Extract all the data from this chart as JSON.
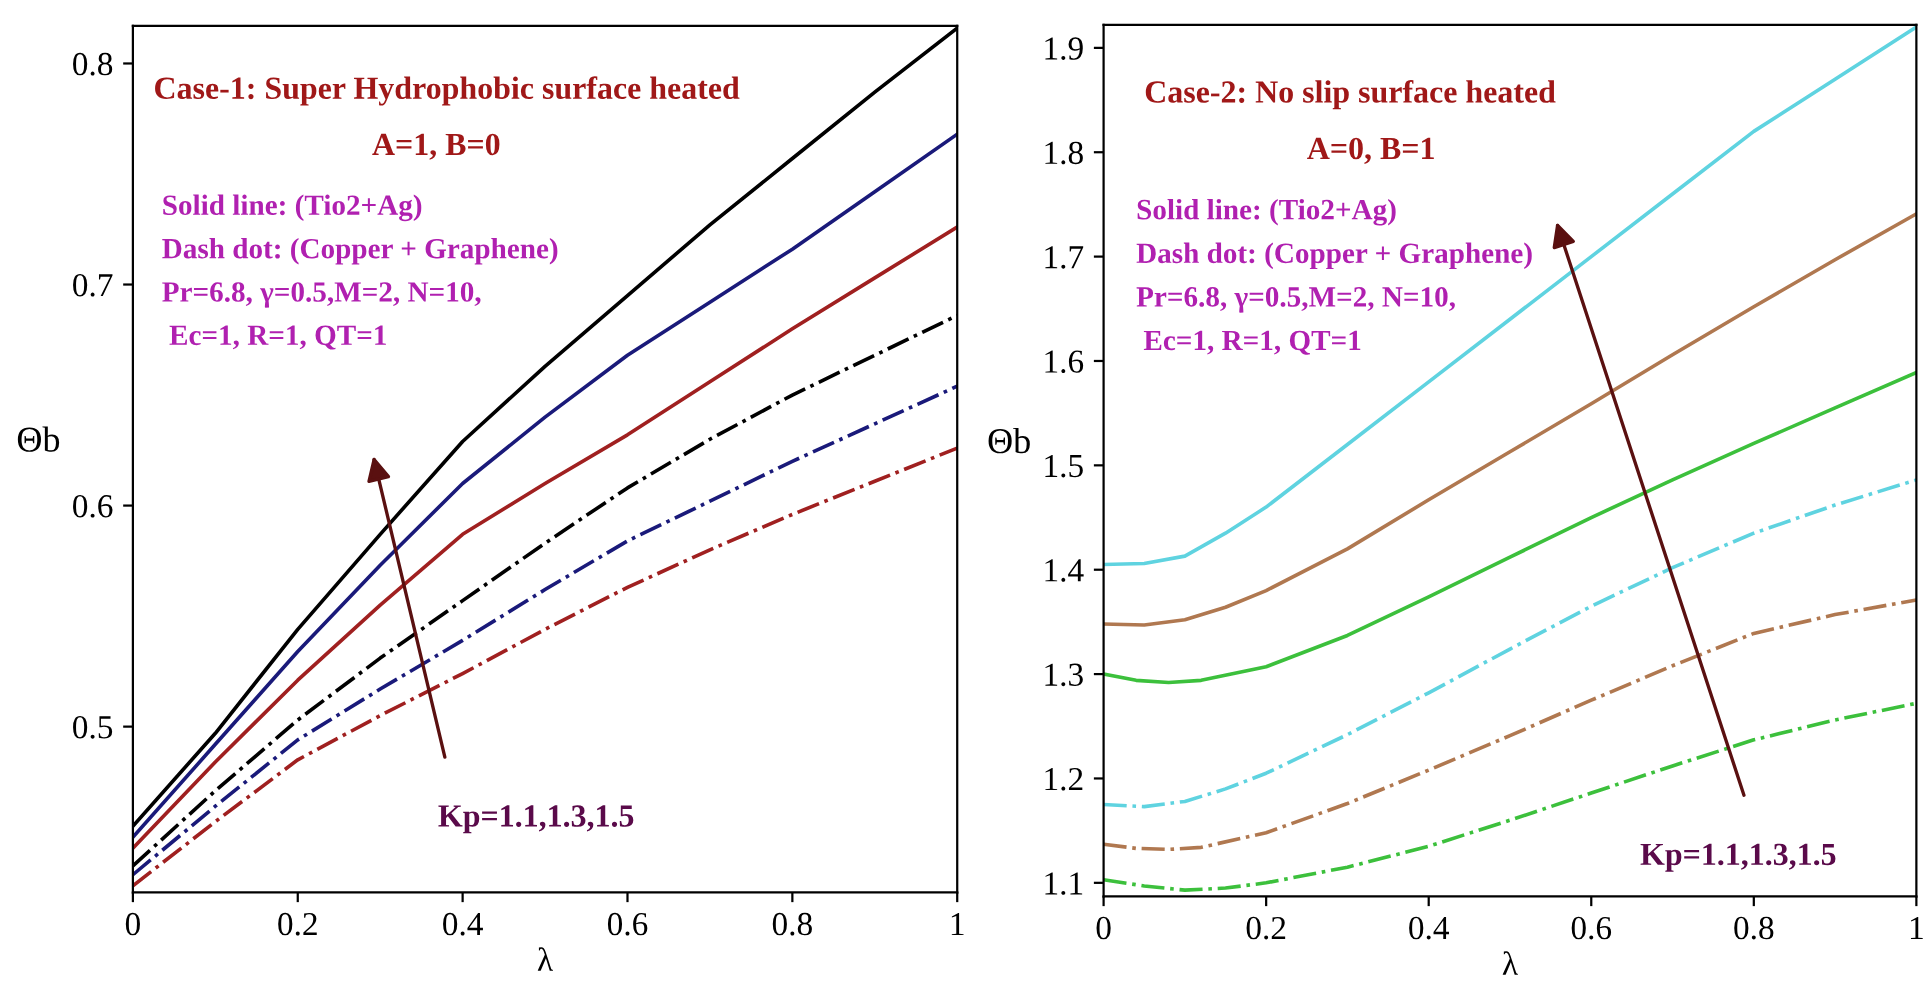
{
  "chart_data": [
    {
      "type": "line",
      "xlabel": "λ",
      "ylabel": "Θb",
      "xlim": [
        0,
        1
      ],
      "ylim": [
        0.425,
        0.817
      ],
      "xticks": [
        0,
        0.2,
        0.4,
        0.6,
        0.8,
        1
      ],
      "yticks": [
        0.5,
        0.6,
        0.7,
        0.8
      ],
      "grid": false,
      "legend": false,
      "x": [
        0,
        0.1,
        0.2,
        0.3,
        0.4,
        0.5,
        0.6,
        0.7,
        0.8,
        0.9,
        1
      ],
      "annotations": [
        "Case-1: Super Hydrophobic surface heated",
        "A=1, B=0",
        "Solid line: (Tio2+Ag)",
        "Dash dot: (Copper + Graphene)",
        "Pr=6.8, γ=0.5,M=2, N=10,",
        " Ec=1, R=1, QT=1",
        "Kp=1.1,1.3,1.5"
      ],
      "series": [
        {
          "color": "#000000",
          "line_style": "solid",
          "values": [
            0.455,
            0.497,
            0.544,
            0.587,
            0.629,
            0.663,
            0.695,
            0.727,
            0.757,
            0.787,
            0.816
          ]
        },
        {
          "color": "#1a1a7a",
          "line_style": "solid",
          "values": [
            0.45,
            0.492,
            0.534,
            0.573,
            0.61,
            0.64,
            0.668,
            0.692,
            0.716,
            0.742,
            0.768
          ]
        },
        {
          "color": "#a02020",
          "line_style": "solid",
          "values": [
            0.445,
            0.484,
            0.521,
            0.555,
            0.587,
            0.61,
            0.632,
            0.656,
            0.68,
            0.703,
            0.726
          ]
        },
        {
          "color": "#000000",
          "line_style": "dashdot",
          "values": [
            0.437,
            0.471,
            0.503,
            0.531,
            0.557,
            0.583,
            0.608,
            0.63,
            0.65,
            0.668,
            0.686
          ]
        },
        {
          "color": "#1a1a7a",
          "line_style": "dashdot",
          "values": [
            0.433,
            0.464,
            0.494,
            0.517,
            0.539,
            0.562,
            0.584,
            0.602,
            0.62,
            0.637,
            0.654
          ]
        },
        {
          "color": "#a02020",
          "line_style": "dashdot",
          "values": [
            0.428,
            0.457,
            0.485,
            0.505,
            0.524,
            0.544,
            0.563,
            0.58,
            0.596,
            0.611,
            0.626
          ]
        }
      ]
    },
    {
      "type": "line",
      "xlabel": "λ",
      "ylabel": "Θb",
      "xlim": [
        0,
        1
      ],
      "ylim": [
        1.087,
        1.922
      ],
      "xticks": [
        0,
        0.2,
        0.4,
        0.6,
        0.8,
        1
      ],
      "yticks": [
        1.1,
        1.2,
        1.3,
        1.4,
        1.5,
        1.6,
        1.7,
        1.8,
        1.9
      ],
      "grid": false,
      "legend": false,
      "annotations": [
        "Case-2: No slip surface heated",
        "A=0, B=1",
        "Solid line: (Tio2+Ag)",
        "Dash dot: (Copper + Graphene)",
        "Pr=6.8, γ=0.5,M=2, N=10,",
        " Ec=1, R=1, QT=1",
        "Kp=1.1,1.3,1.5"
      ],
      "series": [
        {
          "color": "#5fd3e0",
          "line_style": "solid",
          "x": [
            0,
            0.05,
            0.1,
            0.15,
            0.2,
            0.3,
            0.4,
            0.5,
            0.6,
            0.7,
            0.8,
            0.9,
            1
          ],
          "values": [
            1.405,
            1.406,
            1.413,
            1.435,
            1.46,
            1.52,
            1.58,
            1.64,
            1.7,
            1.76,
            1.82,
            1.87,
            1.92
          ]
        },
        {
          "color": "#b07850",
          "line_style": "solid",
          "x": [
            0,
            0.05,
            0.1,
            0.15,
            0.2,
            0.3,
            0.4,
            0.5,
            0.6,
            0.7,
            0.8,
            0.9,
            1
          ],
          "values": [
            1.348,
            1.347,
            1.352,
            1.364,
            1.38,
            1.42,
            1.467,
            1.513,
            1.559,
            1.606,
            1.652,
            1.697,
            1.741
          ]
        },
        {
          "color": "#3cc03c",
          "line_style": "solid",
          "x": [
            0,
            0.04,
            0.08,
            0.12,
            0.2,
            0.3,
            0.4,
            0.5,
            0.6,
            0.7,
            0.8,
            0.9,
            1
          ],
          "values": [
            1.3,
            1.294,
            1.292,
            1.294,
            1.307,
            1.337,
            1.374,
            1.412,
            1.45,
            1.486,
            1.521,
            1.555,
            1.589
          ]
        },
        {
          "color": "#5fd3e0",
          "line_style": "dashdot",
          "x": [
            0,
            0.05,
            0.1,
            0.15,
            0.2,
            0.3,
            0.4,
            0.5,
            0.6,
            0.7,
            0.8,
            0.9,
            1
          ],
          "values": [
            1.175,
            1.173,
            1.178,
            1.19,
            1.205,
            1.242,
            1.282,
            1.324,
            1.365,
            1.402,
            1.435,
            1.462,
            1.486
          ]
        },
        {
          "color": "#b07850",
          "line_style": "dashdot",
          "x": [
            0,
            0.04,
            0.08,
            0.12,
            0.2,
            0.3,
            0.4,
            0.5,
            0.6,
            0.7,
            0.8,
            0.9,
            1
          ],
          "values": [
            1.137,
            1.133,
            1.132,
            1.134,
            1.148,
            1.176,
            1.208,
            1.241,
            1.275,
            1.308,
            1.339,
            1.357,
            1.371
          ]
        },
        {
          "color": "#3cc03c",
          "line_style": "dashdot",
          "x": [
            0,
            0.05,
            0.1,
            0.15,
            0.2,
            0.3,
            0.4,
            0.5,
            0.6,
            0.7,
            0.8,
            0.9,
            1
          ],
          "values": [
            1.103,
            1.097,
            1.093,
            1.095,
            1.1,
            1.115,
            1.135,
            1.16,
            1.186,
            1.212,
            1.237,
            1.256,
            1.272
          ]
        }
      ]
    }
  ]
}
